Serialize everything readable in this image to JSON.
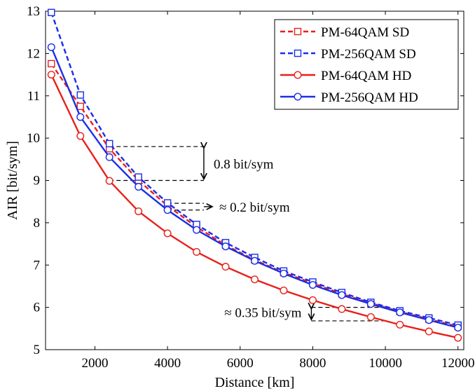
{
  "chart_data": {
    "type": "line",
    "xlabel": "Distance [km]",
    "ylabel": "AIR [bit/sym]",
    "xlim": [
      640,
      12160
    ],
    "ylim": [
      5,
      13
    ],
    "xticks": [
      2000,
      4000,
      6000,
      8000,
      10000,
      12000
    ],
    "xtick_labels": [
      "2000",
      "4000",
      "6000",
      "8000",
      "10000",
      "12000"
    ],
    "yticks": [
      5,
      6,
      7,
      8,
      9,
      10,
      11,
      12,
      13
    ],
    "ytick_labels": [
      "5",
      "6",
      "7",
      "8",
      "9",
      "10",
      "11",
      "12",
      "13"
    ],
    "grid": false,
    "legend_position": "top-right",
    "x": [
      800,
      1600,
      2400,
      3200,
      4000,
      4800,
      5600,
      6400,
      7200,
      8000,
      8800,
      9600,
      10400,
      11200,
      12000
    ],
    "series": [
      {
        "name": "PM-64QAM SD",
        "color": "#e8201a",
        "line_style": "dashed",
        "marker": "square",
        "values": [
          11.76,
          10.75,
          9.75,
          9.0,
          8.4,
          7.9,
          7.47,
          7.12,
          6.82,
          6.57,
          6.32,
          6.1,
          5.9,
          5.72,
          5.55
        ]
      },
      {
        "name": "PM-256QAM SD",
        "color": "#1a2ee8",
        "line_style": "dashed",
        "marker": "square",
        "values": [
          12.97,
          11.02,
          9.87,
          9.08,
          8.47,
          7.96,
          7.53,
          7.18,
          6.86,
          6.6,
          6.35,
          6.12,
          5.92,
          5.75,
          5.58
        ]
      },
      {
        "name": "PM-64QAM HD",
        "color": "#e8201a",
        "line_style": "solid",
        "marker": "circle",
        "values": [
          11.5,
          10.05,
          8.99,
          8.27,
          7.75,
          7.31,
          6.96,
          6.66,
          6.4,
          6.17,
          5.96,
          5.77,
          5.59,
          5.43,
          5.28
        ]
      },
      {
        "name": "PM-256QAM HD",
        "color": "#1a2ee8",
        "line_style": "solid",
        "marker": "circle",
        "values": [
          12.15,
          10.5,
          9.55,
          8.85,
          8.3,
          7.83,
          7.44,
          7.1,
          6.8,
          6.53,
          6.29,
          6.08,
          5.88,
          5.7,
          5.52
        ]
      }
    ],
    "annotations": [
      {
        "text": "0.8 bit/sym",
        "x_from": 2400,
        "x_to": 5000,
        "y_top": 9.8,
        "y_bottom": 9.0
      },
      {
        "text": "≈ 0.2 bit/sym",
        "x_from": 4000,
        "x_to": 5000,
        "y_top": 8.46,
        "y_bottom": 8.3
      },
      {
        "text": "≈ 0.35 bit/sym",
        "x_from": 8000,
        "x_to": 10000,
        "y_top": 6.0,
        "y_bottom": 5.68
      }
    ]
  }
}
